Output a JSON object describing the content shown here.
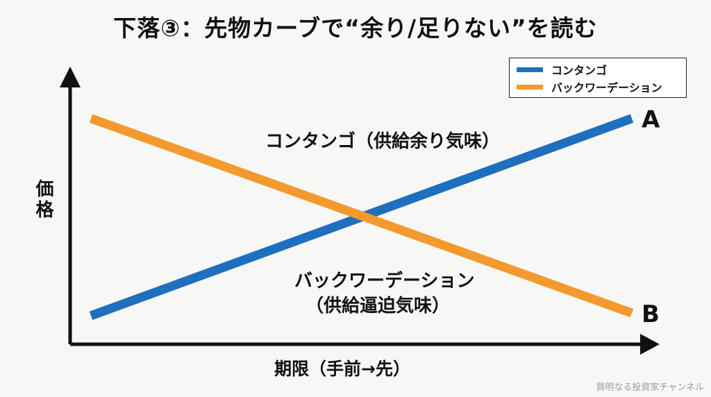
{
  "chart_data": {
    "type": "line",
    "title": "下落③：先物カーブで“余り/足りない”を読む",
    "xlabel": "期限（手前→先）",
    "ylabel": "価格",
    "x": [
      0,
      1
    ],
    "series": [
      {
        "name": "コンタンゴ",
        "color": "#1f6fbf",
        "values": [
          0.11,
          0.87
        ],
        "end_label": "A"
      },
      {
        "name": "バックワーデーション",
        "color": "#f39a2f",
        "values": [
          0.87,
          0.12
        ],
        "end_label": "B"
      }
    ],
    "legend": "top-right",
    "grid": false,
    "annotations": [
      {
        "text": "コンタンゴ（供給余り気味）"
      },
      {
        "text": "バックワーデーション"
      },
      {
        "text": "（供給逼迫気味）"
      }
    ]
  },
  "watermark": "買明なる投資家チャンネル"
}
